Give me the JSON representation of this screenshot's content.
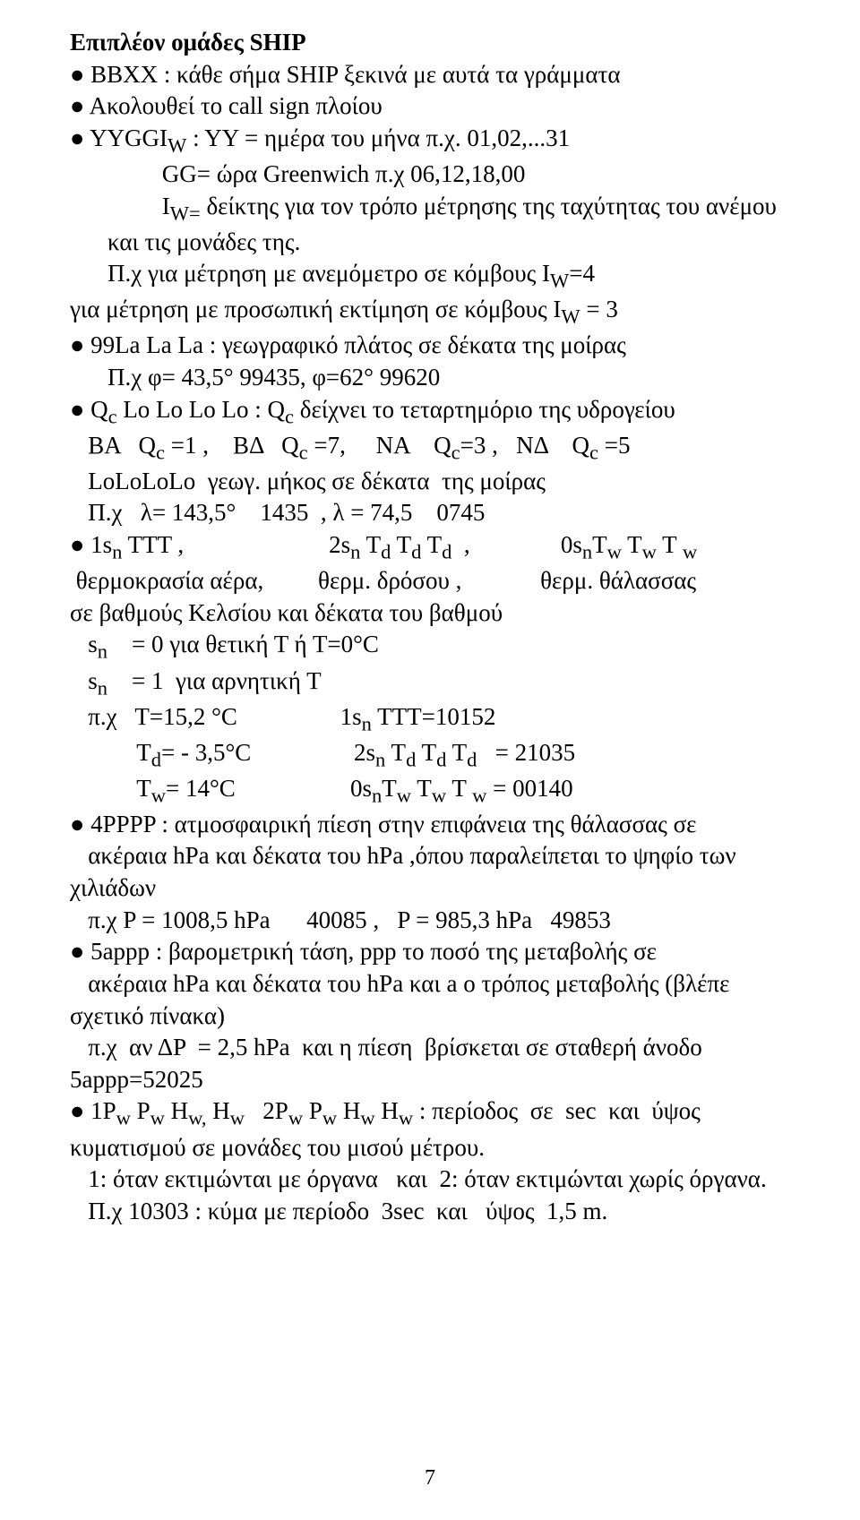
{
  "title": "Επιπλέον  ομάδες  SHIP",
  "l1": "BBXX :  κάθε σήμα SHIP ξεκινά με αυτά τα γράμματα",
  "l2": "Ακολουθεί το call sign πλοίου",
  "l3a": "YYGGI",
  "l3b": "W",
  "l3c": "  :   YY = ημέρα του μήνα  π.χ.  01,02,...31",
  "l4": "GG= ώρα Greenwich π.χ 06,12,18,00",
  "l5a": "I",
  "l5b": "W=",
  "l5c": " δείκτης για τον τρόπο μέτρησης της ταχύτητας  του ανέμου και τις μονάδες της.",
  "l6a": "Π.χ για μέτρηση με ανεμόμετρο σε κόμβους I",
  "l6b": "W",
  "l6c": "=4",
  "l7a": "για μέτρηση με προσωπική εκτίμηση σε  κόμβους I",
  "l7b": "W",
  "l7c": " = 3",
  "l8": "99La La La : γεωγραφικό πλάτος σε δέκατα της μοίρας",
  "l9": "Π.χ  φ= 43,5°    99435,   φ=62°   99620",
  "l10a": "Q",
  "l10b": "c",
  "l10c": " Lo Lo Lo Lo :    Q",
  "l10d": "c",
  "l10e": "   δείχνει το τεταρτημόριο της υδρογείου",
  "l11a": "   ΒΑ   Q",
  "l11b": "c",
  "l11c": " =1 ,    ΒΔ   Q",
  "l11d": "c",
  "l11e": " =7,     ΝΑ    Q",
  "l11f": "c",
  "l11g": "=3 ,   ΝΔ    Q",
  "l11h": "c",
  "l11i": " =5",
  "l12": "   LoLoLoLo  γεωγ. μήκος σε δέκατα  της μοίρας",
  "l13": "   Π.χ   λ= 143,5°    1435  , λ = 74,5    0745",
  "l14a": "1s",
  "l14b": "n",
  "l14c": " TTT ,                        2s",
  "l14d": "n",
  "l14e": " T",
  "l14f": "d",
  "l14g": " T",
  "l14h": "d",
  "l14i": " T",
  "l14j": "d",
  "l14k": "  ,               0s",
  "l14l": "n",
  "l14m": "T",
  "l14n": "w",
  "l14o": " T",
  "l14p": "w",
  "l14q": " T ",
  "l14r": "w",
  "l15": " θερμοκρασία αέρα,         θερμ. δρόσου ,             θερμ. θάλασσας",
  "l16": " σε βαθμούς Κελσίου και δέκατα του βαθμού",
  "l17a": "   s",
  "l17b": "n",
  "l17c": "    = 0 για θετική Τ ή Τ=0°C",
  "l18a": "   s",
  "l18b": "n",
  "l18c": "    = 1  για αρνητική Τ",
  "l19a": "   π.χ   Τ=15,2 °C                 1s",
  "l19b": "n",
  "l19c": " TTT=10152",
  "l20a": "           T",
  "l20b": "d",
  "l20c": "= - 3,5°C                 2s",
  "l20d": "n",
  "l20e": " T",
  "l20f": "d",
  "l20g": " T",
  "l20h": "d",
  "l20i": " T",
  "l20j": "d",
  "l20k": "   = 21035",
  "l21a": "           T",
  "l21b": "w",
  "l21c": "= 14°C                   0s",
  "l21d": "n",
  "l21e": "T",
  "l21f": "w",
  "l21g": " T",
  "l21h": "w",
  "l21i": " T ",
  "l21j": "w",
  "l21k": " = 00140",
  "l22": "4PPPP : ατμοσφαιρική πίεση στην επιφάνεια της θάλασσας σε",
  "l23": "   ακέραια hPa και δέκατα του hPa ,όπου παραλείπεται το ψηφίο των χιλιάδων",
  "l24": "   π.χ P = 1008,5 hPa      40085 ,   P = 985,3 hPa   49853",
  "l25": " 5appp : βαρομετρική τάση,  ppp το ποσό της μεταβολής σε",
  "l26": "   ακέραια hPa και δέκατα του hPa και a ο τρόπος μεταβολής (βλέπε σχετικό πίνακα)",
  "l27": "   π.χ  αν ΔP  = 2,5 hPa  και η πίεση  βρίσκεται σε σταθερή άνοδο   5appp=52025",
  "l28a": "1P",
  "l28b": "w",
  "l28c": " P",
  "l28d": "w",
  "l28e": " H",
  "l28f": "w,",
  "l28g": " H",
  "l28h": "w",
  "l28i": "   2P",
  "l28j": "w",
  "l28k": " P",
  "l28l": "w",
  "l28m": " H",
  "l28n": "w",
  "l28o": " H",
  "l28p": "w",
  "l28q": " : περίοδος  σε  sec  και  ύψος",
  "l29": " κυματισμού  σε μονάδες  του μισού μέτρου.",
  "l30": "   1: όταν εκτιμώνται με όργανα   και  2: όταν εκτιμώνται χωρίς όργανα.",
  "l31": "   Π.χ 10303 : κύμα με περίοδο  3sec  και   ύψος  1,5 m.",
  "pagenum": "7"
}
